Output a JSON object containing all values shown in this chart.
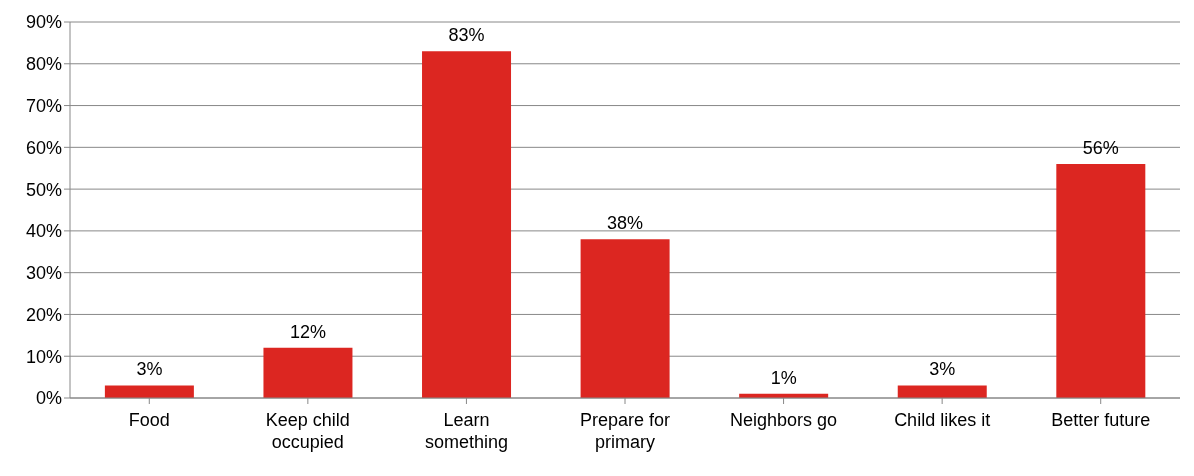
{
  "chart_data": {
    "type": "bar",
    "categories": [
      "Food",
      "Keep child occupied",
      "Learn something",
      "Prepare for primary",
      "Neighbors go",
      "Child likes it",
      "Better future"
    ],
    "values": [
      3,
      12,
      83,
      38,
      1,
      3,
      56
    ],
    "value_labels": [
      "3%",
      "12%",
      "83%",
      "38%",
      "1%",
      "3%",
      "56%"
    ],
    "color": "#dc2621",
    "ylim": [
      0,
      90
    ],
    "yticks": [
      {
        "value": 0,
        "label": "0%"
      },
      {
        "value": 10,
        "label": "10%"
      },
      {
        "value": 20,
        "label": "20%"
      },
      {
        "value": 30,
        "label": "30%"
      },
      {
        "value": 40,
        "label": "40%"
      },
      {
        "value": 50,
        "label": "50%"
      },
      {
        "value": 60,
        "label": "60%"
      },
      {
        "value": 70,
        "label": "70%"
      },
      {
        "value": 80,
        "label": "80%"
      },
      {
        "value": 90,
        "label": "90%"
      }
    ],
    "grid": "y"
  }
}
